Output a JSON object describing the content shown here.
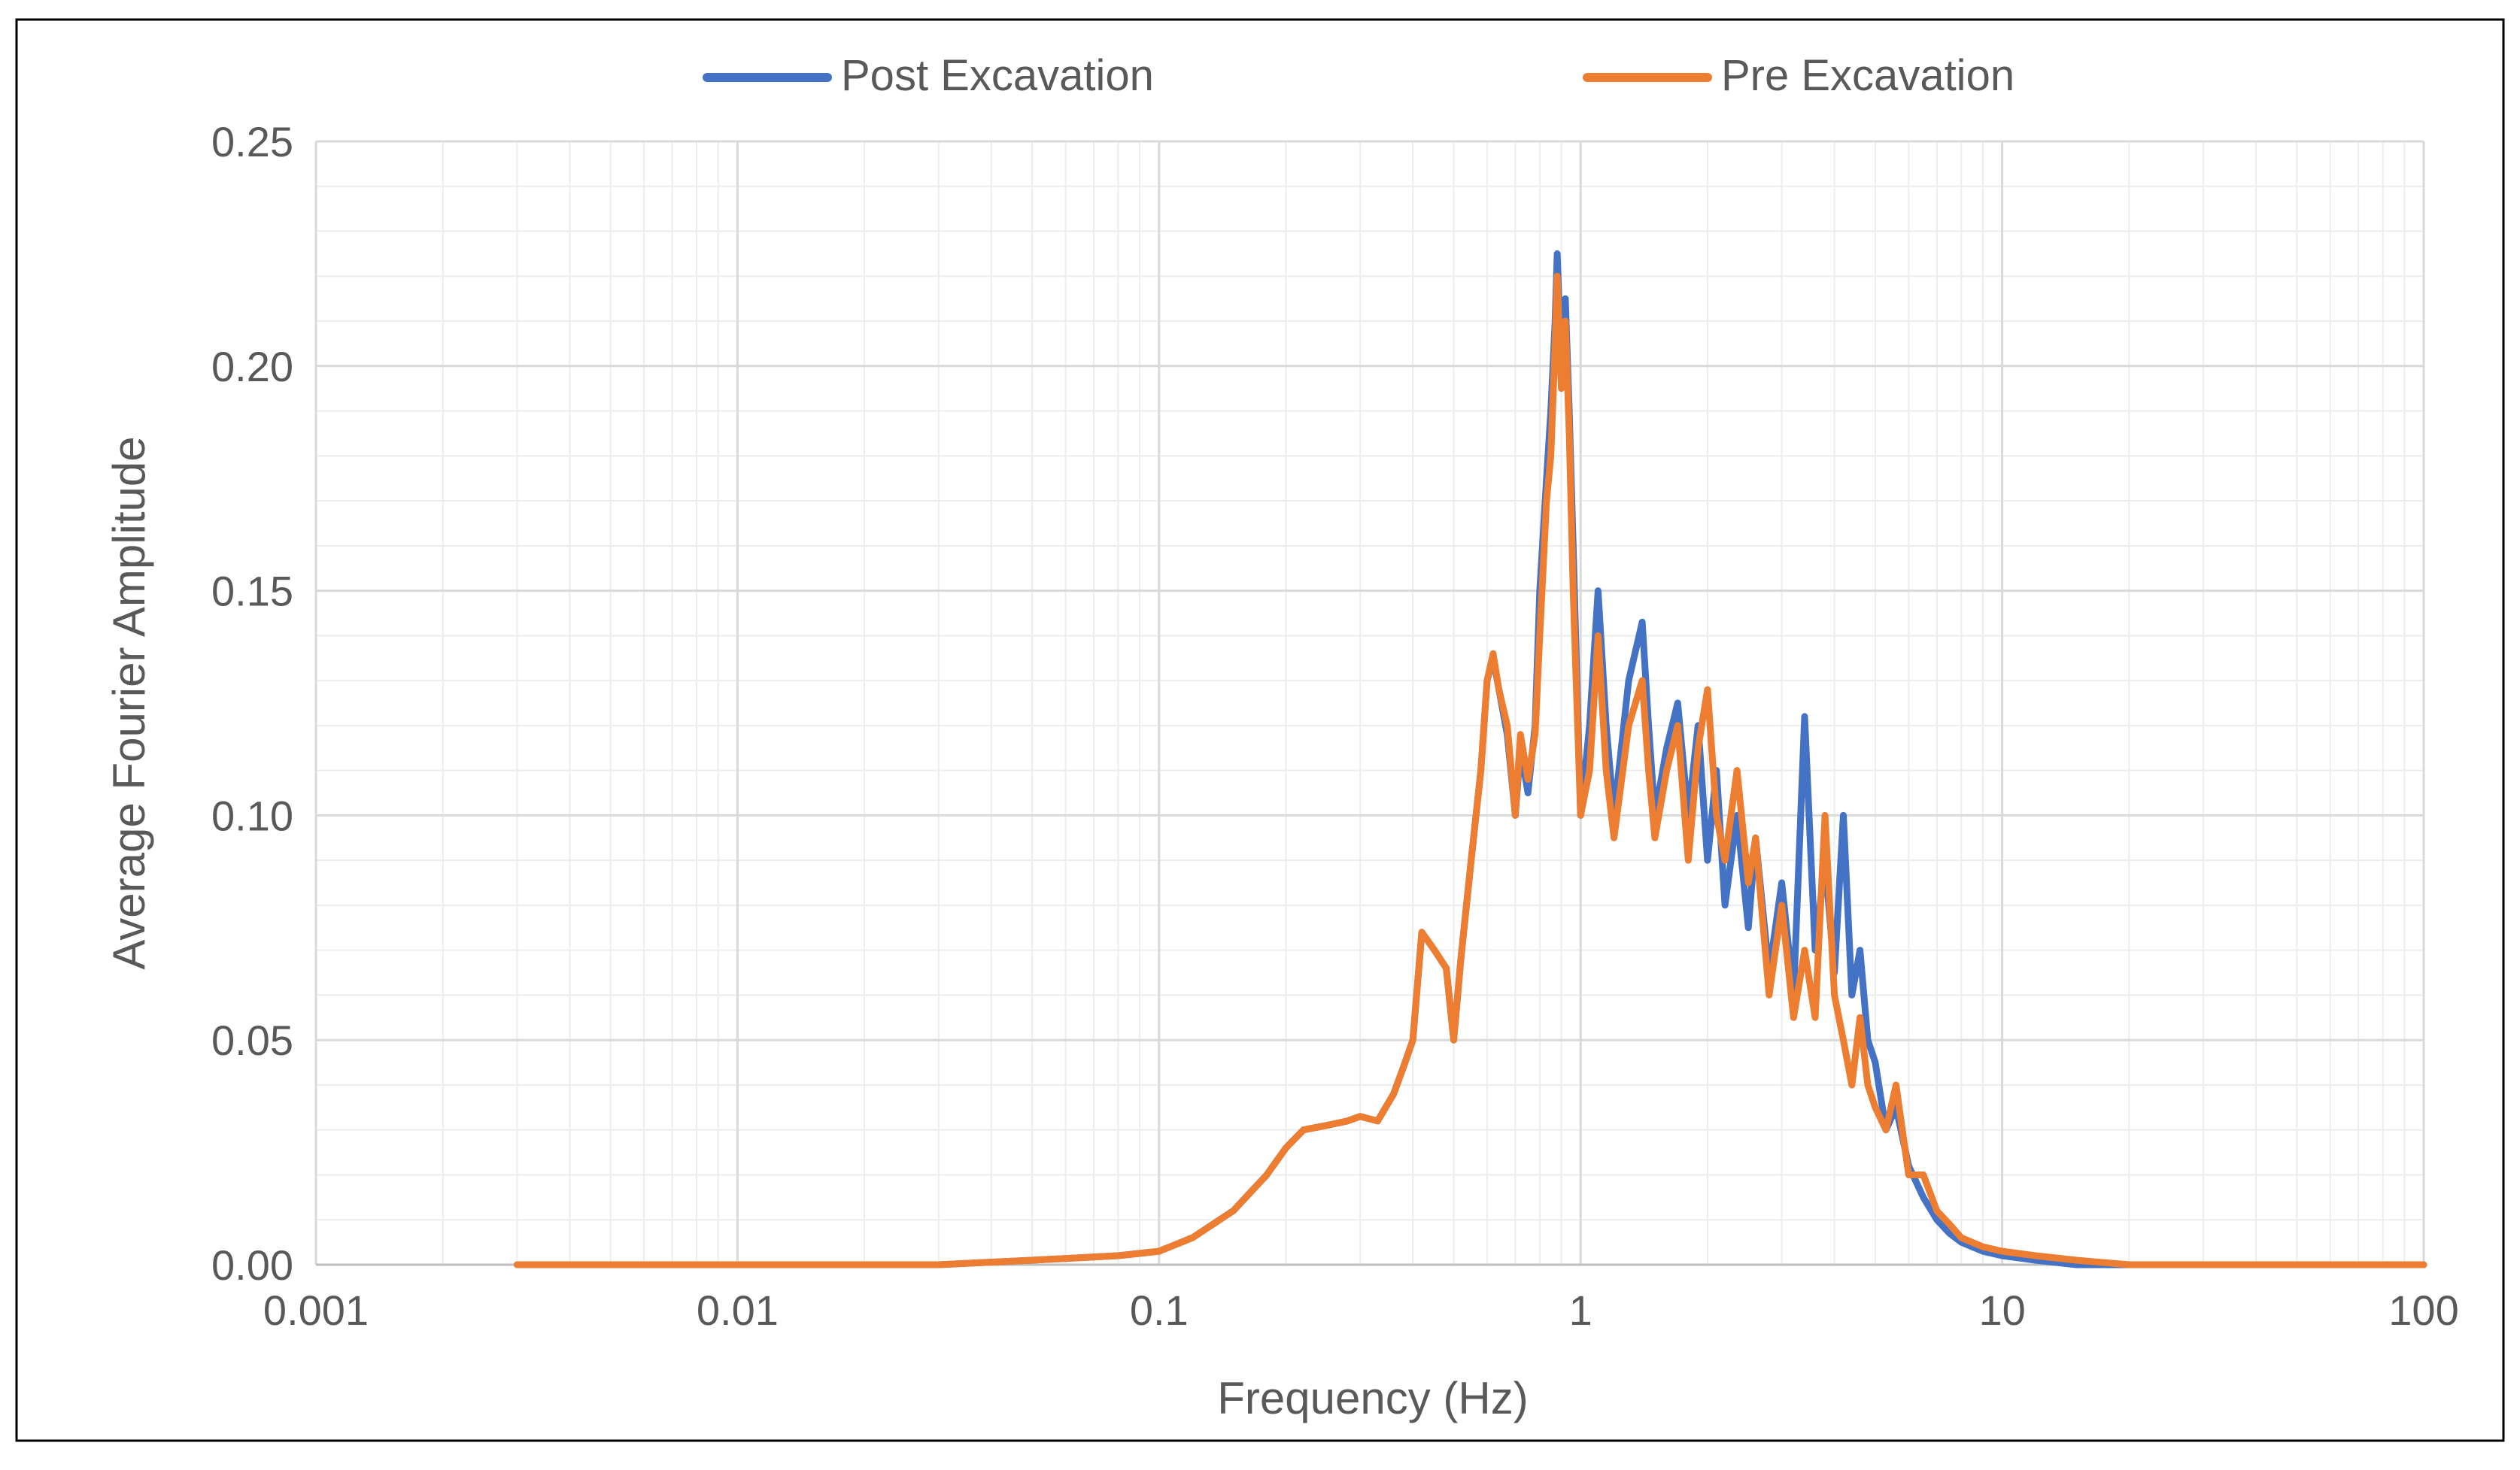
{
  "chart_data": {
    "type": "line",
    "title": "",
    "xlabel": "Frequency (Hz)",
    "ylabel": "Average Fourier Amplitude",
    "xscale": "log",
    "xlim": [
      0.001,
      100
    ],
    "ylim": [
      0,
      0.25
    ],
    "x_ticks": [
      0.001,
      0.01,
      0.1,
      1,
      10,
      100
    ],
    "x_tick_labels": [
      "0.001",
      "0.01",
      "0.1",
      "1",
      "10",
      "100"
    ],
    "y_ticks": [
      0,
      0.05,
      0.1,
      0.15,
      0.2,
      0.25
    ],
    "y_tick_labels": [
      "0.00",
      "0.05",
      "0.10",
      "0.15",
      "0.20",
      "0.25"
    ],
    "grid": true,
    "legend_position": "top",
    "colors": {
      "post": "#4472C4",
      "pre": "#ED7D31",
      "grid": "#D9D9D9",
      "text": "#595959",
      "frame": "#000000"
    },
    "series": [
      {
        "name": "Post Excavation",
        "color": "#4472C4",
        "x": [
          0.003,
          0.01,
          0.03,
          0.05,
          0.08,
          0.1,
          0.12,
          0.15,
          0.18,
          0.2,
          0.22,
          0.25,
          0.28,
          0.3,
          0.33,
          0.36,
          0.38,
          0.4,
          0.42,
          0.45,
          0.48,
          0.5,
          0.52,
          0.55,
          0.58,
          0.6,
          0.62,
          0.64,
          0.67,
          0.7,
          0.72,
          0.75,
          0.78,
          0.8,
          0.83,
          0.85,
          0.87,
          0.88,
          0.9,
          0.92,
          0.94,
          0.96,
          1.0,
          1.05,
          1.1,
          1.15,
          1.2,
          1.3,
          1.4,
          1.45,
          1.5,
          1.6,
          1.7,
          1.8,
          1.9,
          2.0,
          2.1,
          2.2,
          2.35,
          2.5,
          2.6,
          2.8,
          3.0,
          3.2,
          3.4,
          3.6,
          3.8,
          4.0,
          4.2,
          4.4,
          4.6,
          4.8,
          5.0,
          5.3,
          5.6,
          6.0,
          6.5,
          7.0,
          7.5,
          8.0,
          9.0,
          10.0,
          12.0,
          15.0,
          20.0,
          50.0,
          100.0
        ],
        "values": [
          0,
          0,
          0,
          0.001,
          0.002,
          0.003,
          0.006,
          0.012,
          0.02,
          0.026,
          0.03,
          0.031,
          0.032,
          0.033,
          0.032,
          0.038,
          0.044,
          0.05,
          0.074,
          0.07,
          0.066,
          0.05,
          0.068,
          0.09,
          0.11,
          0.13,
          0.135,
          0.128,
          0.118,
          0.1,
          0.115,
          0.105,
          0.12,
          0.15,
          0.175,
          0.19,
          0.21,
          0.225,
          0.2,
          0.215,
          0.19,
          0.16,
          0.1,
          0.12,
          0.15,
          0.12,
          0.1,
          0.13,
          0.143,
          0.12,
          0.1,
          0.115,
          0.125,
          0.1,
          0.12,
          0.09,
          0.11,
          0.08,
          0.1,
          0.075,
          0.095,
          0.065,
          0.085,
          0.06,
          0.122,
          0.07,
          0.09,
          0.065,
          0.1,
          0.06,
          0.07,
          0.05,
          0.045,
          0.03,
          0.035,
          0.022,
          0.015,
          0.01,
          0.007,
          0.005,
          0.003,
          0.002,
          0.001,
          0,
          0,
          0,
          0
        ]
      },
      {
        "name": "Pre Excavation",
        "color": "#ED7D31",
        "x": [
          0.003,
          0.01,
          0.03,
          0.05,
          0.08,
          0.1,
          0.12,
          0.15,
          0.18,
          0.2,
          0.22,
          0.25,
          0.28,
          0.3,
          0.33,
          0.36,
          0.38,
          0.4,
          0.42,
          0.45,
          0.48,
          0.5,
          0.52,
          0.55,
          0.58,
          0.6,
          0.62,
          0.64,
          0.67,
          0.7,
          0.72,
          0.75,
          0.78,
          0.8,
          0.83,
          0.85,
          0.87,
          0.88,
          0.9,
          0.92,
          0.94,
          0.96,
          1.0,
          1.05,
          1.1,
          1.15,
          1.2,
          1.3,
          1.4,
          1.45,
          1.5,
          1.6,
          1.7,
          1.8,
          1.9,
          2.0,
          2.1,
          2.2,
          2.35,
          2.5,
          2.6,
          2.8,
          3.0,
          3.2,
          3.4,
          3.6,
          3.8,
          4.0,
          4.2,
          4.4,
          4.6,
          4.8,
          5.0,
          5.3,
          5.6,
          6.0,
          6.5,
          7.0,
          7.5,
          8.0,
          9.0,
          10.0,
          12.0,
          15.0,
          20.0,
          50.0,
          100.0
        ],
        "values": [
          0,
          0,
          0,
          0.001,
          0.002,
          0.003,
          0.006,
          0.012,
          0.02,
          0.026,
          0.03,
          0.031,
          0.032,
          0.033,
          0.032,
          0.038,
          0.044,
          0.05,
          0.074,
          0.07,
          0.066,
          0.05,
          0.068,
          0.09,
          0.11,
          0.13,
          0.136,
          0.128,
          0.12,
          0.1,
          0.118,
          0.108,
          0.118,
          0.14,
          0.17,
          0.18,
          0.205,
          0.22,
          0.195,
          0.21,
          0.185,
          0.15,
          0.1,
          0.11,
          0.14,
          0.11,
          0.095,
          0.12,
          0.13,
          0.11,
          0.095,
          0.11,
          0.12,
          0.09,
          0.115,
          0.128,
          0.1,
          0.09,
          0.11,
          0.085,
          0.095,
          0.06,
          0.08,
          0.055,
          0.07,
          0.055,
          0.1,
          0.06,
          0.05,
          0.04,
          0.055,
          0.04,
          0.035,
          0.03,
          0.04,
          0.02,
          0.02,
          0.012,
          0.009,
          0.006,
          0.004,
          0.003,
          0.002,
          0.001,
          0,
          0,
          0
        ]
      }
    ]
  }
}
